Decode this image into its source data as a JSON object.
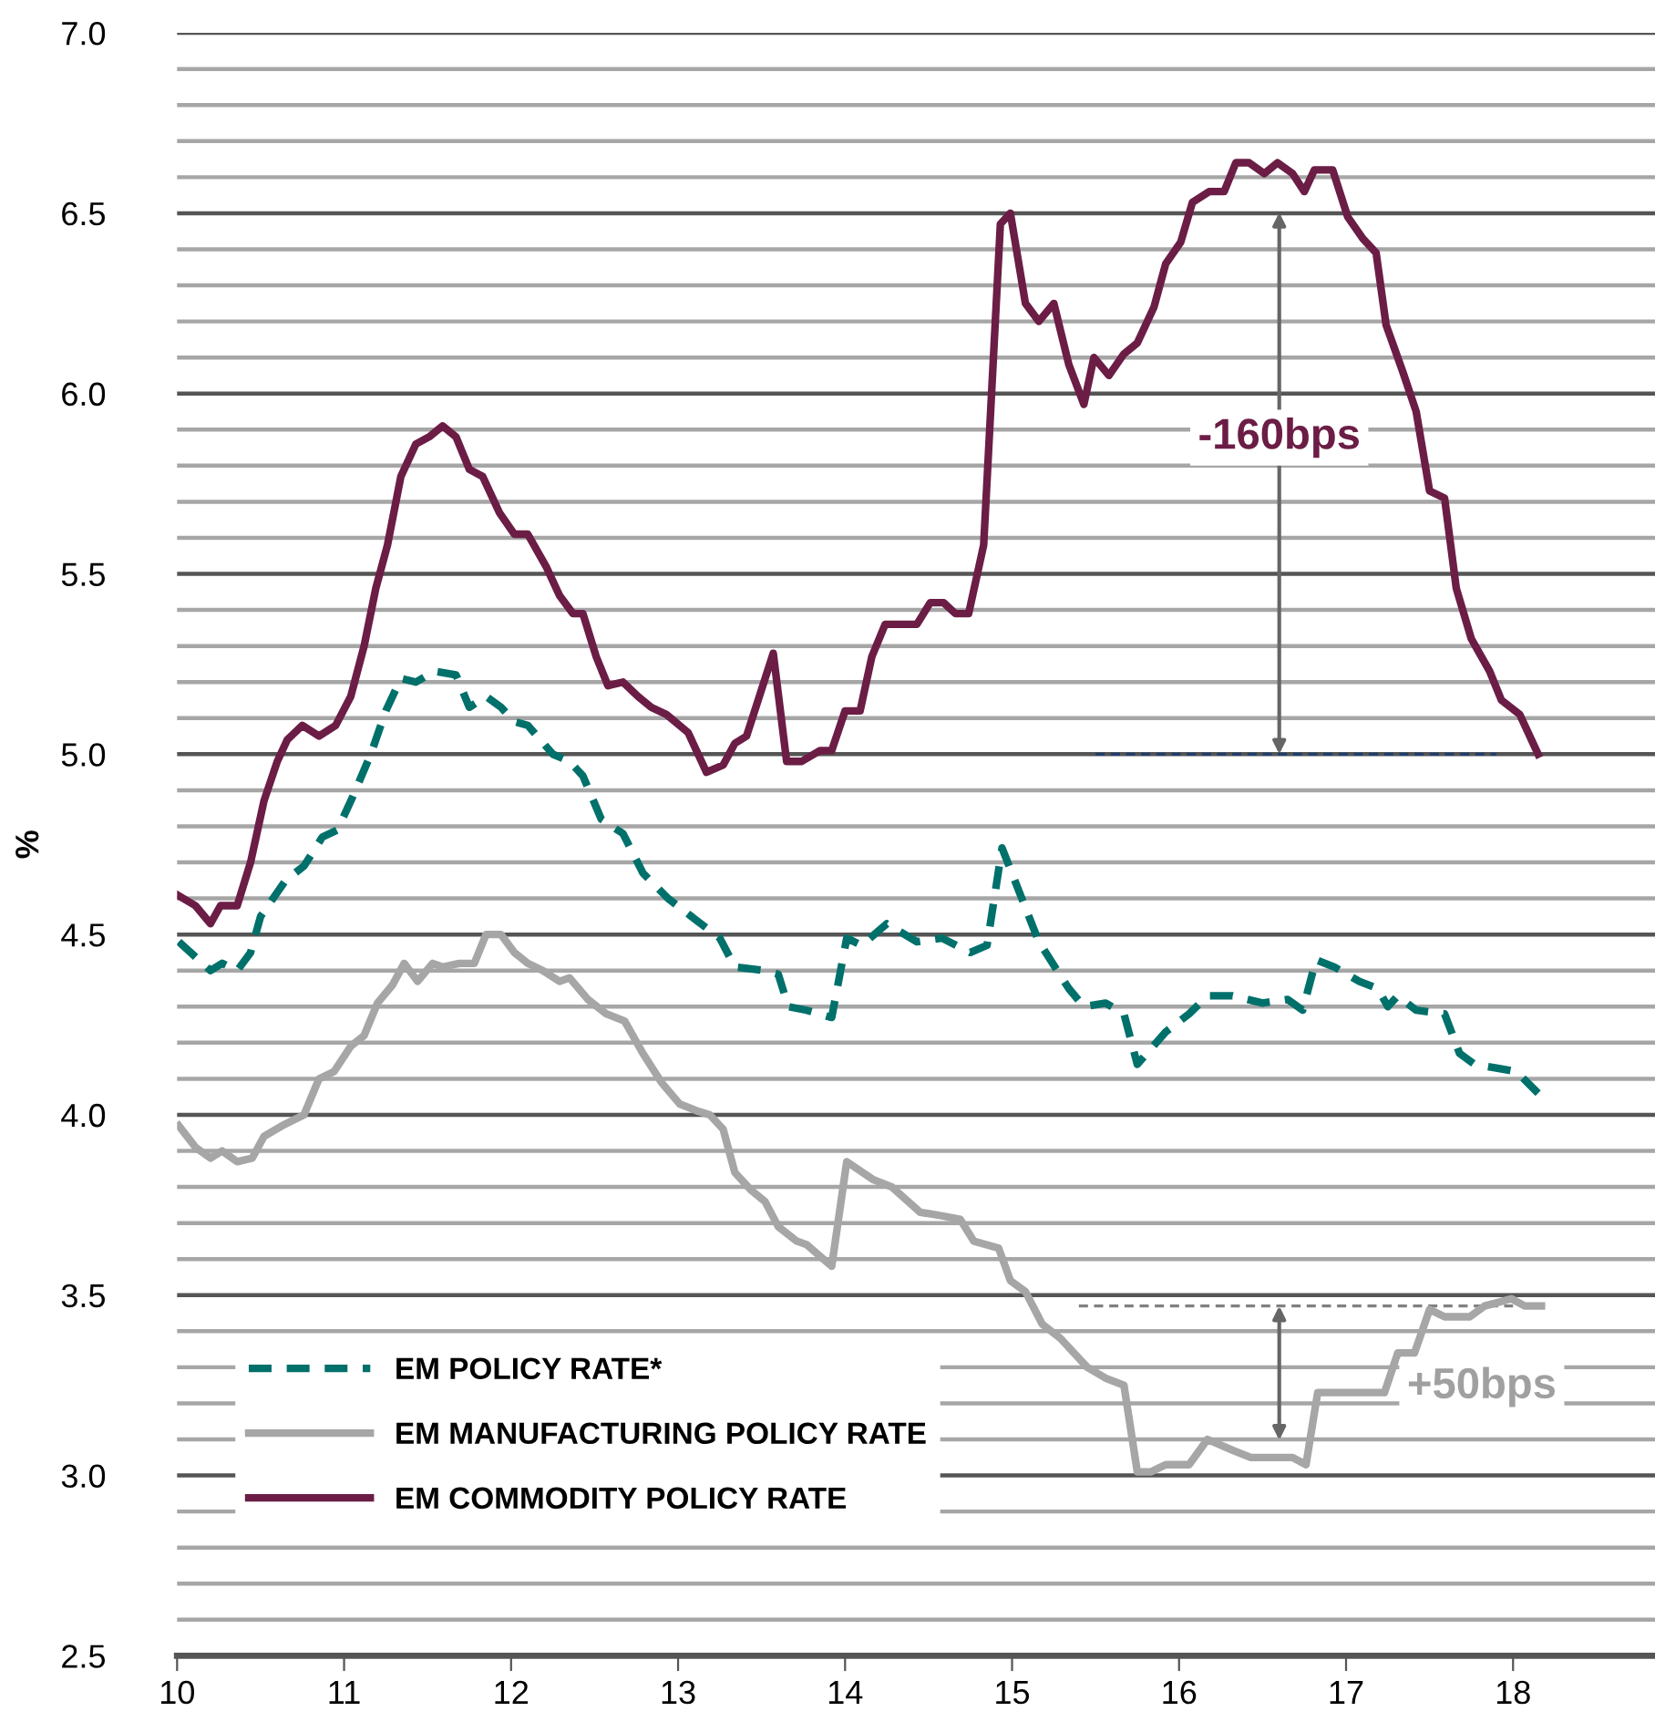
{
  "chart_data": {
    "type": "line",
    "ylabel": "%",
    "xlim": [
      10,
      18.85
    ],
    "ylim": [
      2.5,
      7.0
    ],
    "xticks": [
      10,
      11,
      12,
      13,
      14,
      15,
      16,
      17,
      18
    ],
    "yticks": [
      {
        "value": 2.5,
        "label": "2.5"
      },
      {
        "value": 2.6,
        "label": null
      },
      {
        "value": 2.7,
        "label": null
      },
      {
        "value": 2.8,
        "label": null
      },
      {
        "value": 2.9,
        "label": null
      },
      {
        "value": 3.0,
        "label": "3.0"
      },
      {
        "value": 3.1,
        "label": null
      },
      {
        "value": 3.2,
        "label": null
      },
      {
        "value": 3.3,
        "label": null
      },
      {
        "value": 3.4,
        "label": null
      },
      {
        "value": 3.5,
        "label": "3.5"
      },
      {
        "value": 3.6,
        "label": null
      },
      {
        "value": 3.7,
        "label": null
      },
      {
        "value": 3.8,
        "label": null
      },
      {
        "value": 3.9,
        "label": null
      },
      {
        "value": 4.0,
        "label": "4.0"
      },
      {
        "value": 4.1,
        "label": null
      },
      {
        "value": 4.2,
        "label": null
      },
      {
        "value": 4.3,
        "label": null
      },
      {
        "value": 4.4,
        "label": null
      },
      {
        "value": 4.5,
        "label": "4.5"
      },
      {
        "value": 4.6,
        "label": null
      },
      {
        "value": 4.7,
        "label": null
      },
      {
        "value": 4.8,
        "label": null
      },
      {
        "value": 4.9,
        "label": null
      },
      {
        "value": 5.0,
        "label": "5.0"
      },
      {
        "value": 5.1,
        "label": null
      },
      {
        "value": 5.2,
        "label": null
      },
      {
        "value": 5.3,
        "label": null
      },
      {
        "value": 5.4,
        "label": null
      },
      {
        "value": 5.5,
        "label": "5.5"
      },
      {
        "value": 5.6,
        "label": null
      },
      {
        "value": 5.7,
        "label": null
      },
      {
        "value": 5.8,
        "label": null
      },
      {
        "value": 5.9,
        "label": null
      },
      {
        "value": 6.0,
        "label": "6.0"
      },
      {
        "value": 6.1,
        "label": null
      },
      {
        "value": 6.2,
        "label": null
      },
      {
        "value": 6.3,
        "label": null
      },
      {
        "value": 6.4,
        "label": null
      },
      {
        "value": 6.5,
        "label": "6.5"
      },
      {
        "value": 6.6,
        "label": null
      },
      {
        "value": 6.7,
        "label": null
      },
      {
        "value": 6.8,
        "label": null
      },
      {
        "value": 6.9,
        "label": null
      },
      {
        "value": 7.0,
        "label": "7.0"
      }
    ],
    "grid": "y",
    "legend": "bottom left",
    "series": [
      {
        "name": "EM POLICY RATE*",
        "color": "#00706b",
        "line_style": "dashed",
        "x": [
          10.01,
          10.2,
          10.27,
          10.36,
          10.44,
          10.5,
          10.65,
          10.76,
          10.87,
          10.96,
          11.05,
          11.16,
          11.25,
          11.34,
          11.43,
          11.54,
          11.67,
          11.75,
          11.85,
          11.94,
          12.02,
          12.1,
          12.25,
          12.35,
          12.43,
          12.54,
          12.67,
          12.79,
          12.94,
          13.08,
          13.25,
          13.34,
          13.52,
          13.6,
          13.66,
          13.77,
          13.92,
          14.01,
          14.1,
          14.25,
          14.43,
          14.58,
          14.75,
          14.85,
          14.94,
          15.16,
          15.34,
          15.43,
          15.56,
          15.67,
          15.75,
          15.92,
          16.06,
          16.17,
          16.32,
          16.5,
          16.65,
          16.74,
          16.82,
          16.93,
          17.08,
          17.19,
          17.25,
          17.31,
          17.42,
          17.59,
          17.68,
          17.77,
          17.9,
          18.02,
          18.15
        ],
        "values": [
          4.48,
          4.4,
          4.42,
          4.4,
          4.45,
          4.55,
          4.65,
          4.69,
          4.77,
          4.79,
          4.88,
          5.0,
          5.12,
          5.21,
          5.2,
          5.23,
          5.22,
          5.13,
          5.16,
          5.13,
          5.09,
          5.08,
          5.0,
          4.98,
          4.94,
          4.82,
          4.78,
          4.67,
          4.6,
          4.55,
          4.49,
          4.41,
          4.4,
          4.39,
          4.3,
          4.29,
          4.27,
          4.49,
          4.47,
          4.53,
          4.48,
          4.49,
          4.45,
          4.47,
          4.74,
          4.48,
          4.35,
          4.3,
          4.31,
          4.28,
          4.14,
          4.23,
          4.28,
          4.33,
          4.33,
          4.31,
          4.32,
          4.29,
          4.43,
          4.41,
          4.37,
          4.35,
          4.3,
          4.33,
          4.29,
          4.28,
          4.17,
          4.14,
          4.13,
          4.12,
          4.06
        ]
      },
      {
        "name": "EM MANUFACTURING POLICY RATE",
        "color": "#a6a6a6",
        "line_style": "solid",
        "x": [
          10.01,
          10.11,
          10.2,
          10.27,
          10.36,
          10.45,
          10.52,
          10.63,
          10.76,
          10.85,
          10.94,
          11.04,
          11.12,
          11.2,
          11.29,
          11.36,
          11.44,
          11.53,
          11.59,
          11.69,
          11.78,
          11.85,
          11.94,
          12.02,
          12.1,
          12.19,
          12.29,
          12.35,
          12.46,
          12.57,
          12.68,
          12.79,
          12.9,
          13.01,
          13.12,
          13.19,
          13.27,
          13.34,
          13.44,
          13.52,
          13.6,
          13.71,
          13.77,
          13.92,
          14.01,
          14.17,
          14.28,
          14.45,
          14.58,
          14.69,
          14.77,
          14.92,
          14.99,
          15.08,
          15.18,
          15.29,
          15.45,
          15.56,
          15.67,
          15.75,
          15.83,
          15.92,
          16.06,
          16.17,
          16.32,
          16.43,
          16.68,
          16.76,
          16.83,
          17.23,
          17.31,
          17.41,
          17.5,
          17.59,
          17.74,
          17.83,
          17.91,
          17.99,
          18.07,
          18.17
        ],
        "values": [
          3.97,
          3.91,
          3.88,
          3.9,
          3.87,
          3.88,
          3.94,
          3.97,
          4.0,
          4.1,
          4.12,
          4.19,
          4.22,
          4.31,
          4.36,
          4.42,
          4.37,
          4.42,
          4.41,
          4.42,
          4.42,
          4.5,
          4.5,
          4.45,
          4.42,
          4.4,
          4.37,
          4.38,
          4.32,
          4.28,
          4.26,
          4.17,
          4.09,
          4.03,
          4.01,
          4.0,
          3.96,
          3.84,
          3.79,
          3.76,
          3.69,
          3.65,
          3.64,
          3.58,
          3.87,
          3.82,
          3.8,
          3.73,
          3.72,
          3.71,
          3.65,
          3.63,
          3.54,
          3.51,
          3.42,
          3.38,
          3.3,
          3.27,
          3.25,
          3.01,
          3.01,
          3.03,
          3.03,
          3.1,
          3.07,
          3.05,
          3.05,
          3.03,
          3.23,
          3.23,
          3.34,
          3.34,
          3.46,
          3.44,
          3.44,
          3.47,
          3.48,
          3.49,
          3.47,
          3.47
        ]
      },
      {
        "name": "EM COMMODITY POLICY RATE",
        "color": "#6b1d45",
        "line_style": "solid",
        "x": [
          10.0,
          10.11,
          10.2,
          10.26,
          10.36,
          10.44,
          10.52,
          10.6,
          10.66,
          10.75,
          10.85,
          10.95,
          11.04,
          11.12,
          11.19,
          11.26,
          11.34,
          11.43,
          11.51,
          11.59,
          11.67,
          11.75,
          11.83,
          11.93,
          12.02,
          12.1,
          12.21,
          12.29,
          12.37,
          12.43,
          12.51,
          12.58,
          12.67,
          12.76,
          12.84,
          12.93,
          13.06,
          13.17,
          13.27,
          13.34,
          13.41,
          13.57,
          13.65,
          13.74,
          13.85,
          13.92,
          14.0,
          14.09,
          14.16,
          14.24,
          14.43,
          14.51,
          14.59,
          14.66,
          14.74,
          14.83,
          14.93,
          14.99,
          15.08,
          15.16,
          15.25,
          15.34,
          15.43,
          15.49,
          15.58,
          15.67,
          15.75,
          15.85,
          15.92,
          16.01,
          16.08,
          16.18,
          16.27,
          16.34,
          16.42,
          16.51,
          16.59,
          16.68,
          16.75,
          16.81,
          16.92,
          17.01,
          17.1,
          17.18,
          17.24,
          17.34,
          17.42,
          17.5,
          17.59,
          17.66,
          17.75,
          17.86,
          17.93,
          18.04,
          18.15
        ],
        "values": [
          4.61,
          4.58,
          4.53,
          4.58,
          4.58,
          4.7,
          4.87,
          4.98,
          5.04,
          5.08,
          5.05,
          5.08,
          5.16,
          5.3,
          5.46,
          5.58,
          5.77,
          5.86,
          5.88,
          5.91,
          5.88,
          5.79,
          5.77,
          5.67,
          5.61,
          5.61,
          5.52,
          5.44,
          5.39,
          5.39,
          5.27,
          5.19,
          5.2,
          5.16,
          5.13,
          5.11,
          5.06,
          4.95,
          4.97,
          5.03,
          5.05,
          5.28,
          4.98,
          4.98,
          5.01,
          5.01,
          5.12,
          5.12,
          5.27,
          5.36,
          5.36,
          5.42,
          5.42,
          5.39,
          5.39,
          5.58,
          6.47,
          6.5,
          6.25,
          6.2,
          6.25,
          6.08,
          5.97,
          6.1,
          6.05,
          6.11,
          6.14,
          6.24,
          6.36,
          6.42,
          6.53,
          6.56,
          6.56,
          6.64,
          6.64,
          6.61,
          6.64,
          6.61,
          6.56,
          6.62,
          6.62,
          6.49,
          6.43,
          6.39,
          6.19,
          6.06,
          5.95,
          5.73,
          5.71,
          5.46,
          5.32,
          5.23,
          5.15,
          5.11,
          5.0
        ]
      },
      {
        "color": "#1f3f6e",
        "line_style": "dashed",
        "x": [
          15.5,
          17.9
        ],
        "values": [
          5.0,
          5.0
        ]
      },
      {
        "color": "#808080",
        "line_style": "dashed",
        "x": [
          15.4,
          18.0
        ],
        "values": [
          3.47,
          3.47
        ]
      }
    ],
    "annotations": [
      "-160bps",
      "+50bps"
    ]
  }
}
